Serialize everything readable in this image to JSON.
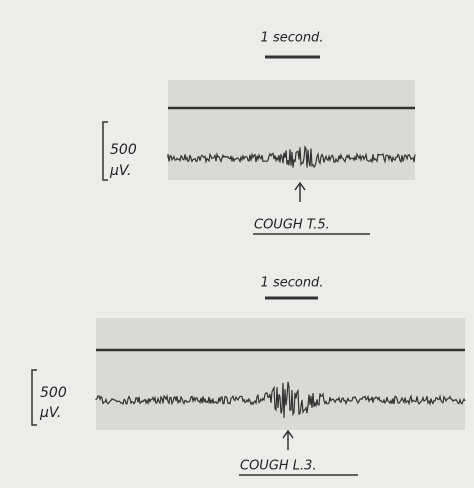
{
  "panels": [
    {
      "time_scale": "1 second.",
      "amplitude": "500",
      "unit": "μV.",
      "label": "COUGH T.5."
    },
    {
      "time_scale": "1 second.",
      "amplitude": "500",
      "unit": "μV.",
      "label": "COUGH L.3."
    }
  ]
}
